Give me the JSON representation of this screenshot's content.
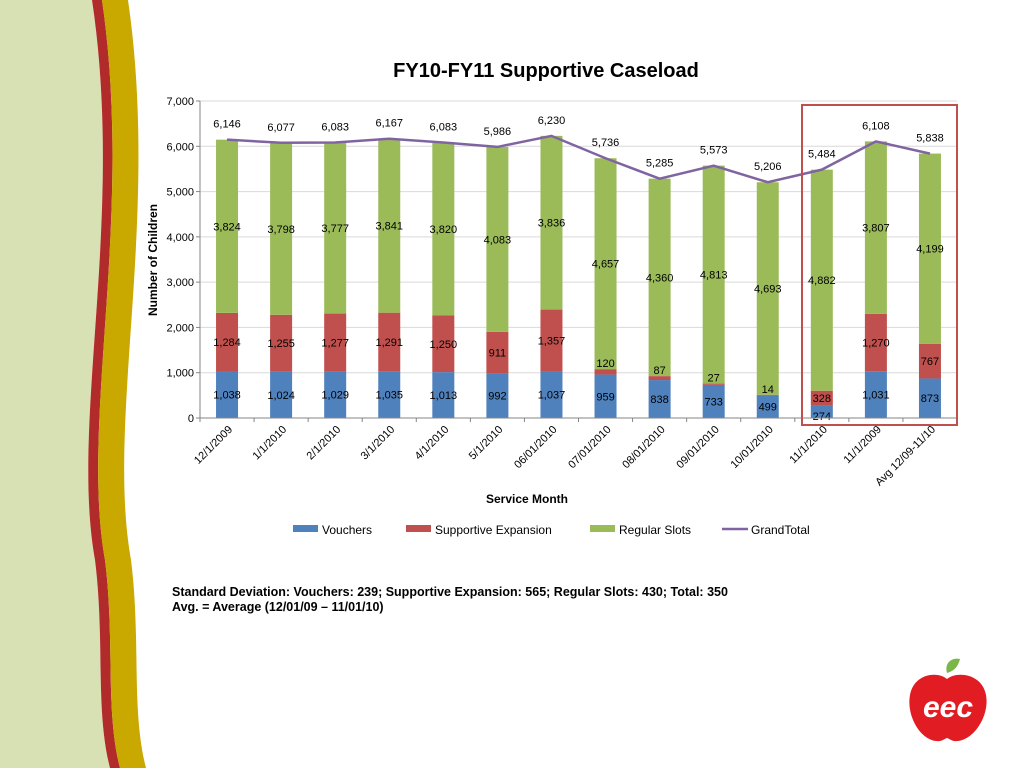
{
  "colors": {
    "vouchers": "#4f81bd",
    "supportive": "#c0504d",
    "regular": "#9bbb59",
    "total": "#8064a2",
    "highlight": "#c0504d",
    "logo": "#e21c23",
    "leaf": "#7ab648"
  },
  "chart_data": {
    "type": "bar",
    "stacked": true,
    "title": "FY10-FY11 Supportive Caseload",
    "xlabel": "Service Month",
    "ylabel": "Number of Children",
    "ylim": [
      0,
      7000
    ],
    "yticks": [
      "0",
      "1,000",
      "2,000",
      "3,000",
      "4,000",
      "5,000",
      "6,000",
      "7,000"
    ],
    "grid": true,
    "legend_position": "bottom",
    "categories": [
      "12/1/2009",
      "1/1/2010",
      "2/1/2010",
      "3/1/2010",
      "4/1/2010",
      "5/1/2010",
      "06/01/2010",
      "07/01/2010",
      "08/01/2010",
      "09/01/2010",
      "10/01/2010",
      "11/1/2010",
      "11/1/2009",
      "Avg 12/09-11/10"
    ],
    "series": [
      {
        "name": "Vouchers",
        "type": "bar",
        "values": [
          1038,
          1024,
          1029,
          1035,
          1013,
          992,
          1037,
          959,
          838,
          733,
          499,
          274,
          1031,
          873
        ],
        "labels": [
          "1,038",
          "1,024",
          "1,029",
          "1,035",
          "1,013",
          "992",
          "1,037",
          "959",
          "838",
          "733",
          "499",
          "274",
          "1,031",
          "873"
        ]
      },
      {
        "name": "Supportive Expansion",
        "type": "bar",
        "values": [
          1284,
          1255,
          1277,
          1291,
          1250,
          911,
          1357,
          120,
          87,
          27,
          14,
          328,
          1270,
          767
        ],
        "labels": [
          "1,284",
          "1,255",
          "1,277",
          "1,291",
          "1,250",
          "911",
          "1,357",
          "120",
          "87",
          "27",
          "14",
          "328",
          "1,270",
          "767"
        ]
      },
      {
        "name": "Regular Slots",
        "type": "bar",
        "values": [
          3824,
          3798,
          3777,
          3841,
          3820,
          4083,
          3836,
          4657,
          4360,
          4813,
          4693,
          4882,
          3807,
          4199
        ],
        "labels": [
          "3,824",
          "3,798",
          "3,777",
          "3,841",
          "3,820",
          "4,083",
          "3,836",
          "4,657",
          "4,360",
          "4,813",
          "4,693",
          "4,882",
          "3,807",
          "4,199"
        ]
      },
      {
        "name": "GrandTotal",
        "type": "line",
        "values": [
          6146,
          6077,
          6083,
          6167,
          6083,
          5986,
          6230,
          5736,
          5285,
          5573,
          5206,
          5484,
          6108,
          5838
        ],
        "labels": [
          "6,146",
          "6,077",
          "6,083",
          "6,167",
          "6,083",
          "5,986",
          "6,230",
          "5,736",
          "5,285",
          "5,573",
          "5,206",
          "5,484",
          "6,108",
          "5,838"
        ]
      }
    ]
  },
  "notes": {
    "line1": "Standard Deviation: Vouchers: 239; Supportive Expansion: 565; Regular Slots: 430; Total: 350",
    "line2": "Avg. = Average (12/01/09 – 11/01/10)"
  },
  "logo": {
    "text": "eec"
  }
}
